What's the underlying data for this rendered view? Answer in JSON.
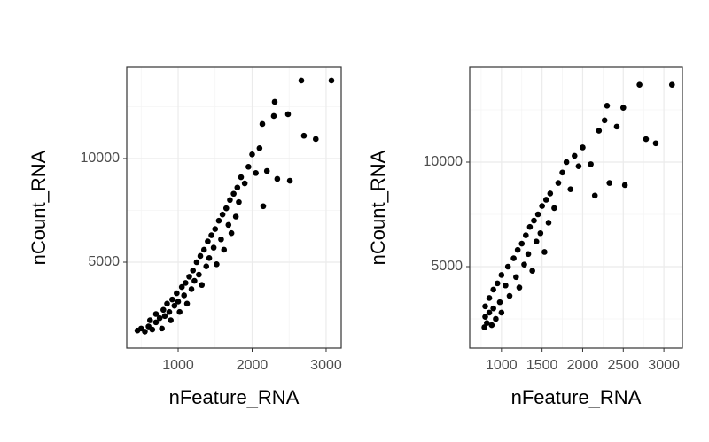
{
  "chart_data": [
    {
      "type": "scatter",
      "x_label": "nFeature_RNA",
      "y_label": "nCount_RNA",
      "color": "#000000",
      "grid": true,
      "xlim": [
        305,
        3204
      ],
      "ylim": [
        855,
        14400
      ],
      "xticks": [
        1000,
        2000,
        3000
      ],
      "yticks": [
        5000,
        10000
      ],
      "xminor": [
        500,
        1500,
        2500
      ],
      "yminor": [
        2500,
        7500,
        12500
      ],
      "x": [
        450,
        500,
        550,
        600,
        620,
        650,
        700,
        700,
        750,
        780,
        800,
        820,
        850,
        880,
        900,
        920,
        950,
        980,
        1000,
        1020,
        1050,
        1080,
        1100,
        1120,
        1150,
        1180,
        1200,
        1220,
        1250,
        1280,
        1300,
        1320,
        1350,
        1380,
        1400,
        1420,
        1450,
        1480,
        1500,
        1520,
        1550,
        1580,
        1600,
        1620,
        1650,
        1680,
        1700,
        1720,
        1750,
        1780,
        1800,
        1820,
        1850,
        1900,
        1950,
        2000,
        2050,
        2100,
        2150,
        2200,
        2700,
        2860,
        2510,
        2340,
        2665,
        3072,
        2305,
        2485,
        2293,
        2138
      ],
      "values": [
        1700,
        1800,
        1650,
        1900,
        2200,
        1750,
        2100,
        2500,
        2300,
        1800,
        2700,
        2400,
        3000,
        2600,
        2200,
        3200,
        2900,
        3500,
        3100,
        2600,
        3800,
        3400,
        4000,
        3000,
        4300,
        3700,
        4600,
        4100,
        5000,
        4400,
        5300,
        3900,
        5600,
        4800,
        6000,
        5200,
        6300,
        5700,
        6600,
        4900,
        7000,
        6100,
        7300,
        5600,
        7600,
        6800,
        8000,
        6400,
        8300,
        7200,
        8600,
        7900,
        9100,
        8800,
        9600,
        10200,
        9300,
        10500,
        7700,
        9400,
        11100,
        10940,
        8930,
        9017,
        13760,
        13760,
        12735,
        12137,
        12051,
        11667
      ]
    },
    {
      "type": "scatter",
      "x_label": "nFeature_RNA",
      "y_label": "nCount_RNA",
      "color": "#000000",
      "grid": true,
      "xlim": [
        609,
        3228
      ],
      "ylim": [
        1102,
        14534
      ],
      "xticks": [
        1000,
        1500,
        2000,
        2500,
        3000
      ],
      "yticks": [
        5000,
        10000
      ],
      "xminor": [
        750,
        1250,
        1750,
        2250,
        2750
      ],
      "yminor": [
        2500,
        7500,
        12500
      ],
      "x": [
        790,
        800,
        800,
        820,
        850,
        850,
        880,
        900,
        900,
        930,
        950,
        980,
        1000,
        1000,
        1050,
        1080,
        1100,
        1150,
        1180,
        1200,
        1220,
        1250,
        1280,
        1300,
        1330,
        1350,
        1380,
        1400,
        1430,
        1450,
        1480,
        1500,
        1530,
        1550,
        1580,
        1600,
        1650,
        1700,
        1750,
        1800,
        1850,
        1900,
        1950,
        2000,
        2100,
        2150,
        2200,
        2300,
        2500,
        2270,
        2420,
        2700,
        3100,
        2780,
        2900,
        2520,
        2330
      ],
      "values": [
        2100,
        2600,
        3100,
        2300,
        3500,
        2800,
        2200,
        3900,
        3000,
        2500,
        4200,
        3300,
        4600,
        2800,
        4100,
        5000,
        3600,
        5400,
        4500,
        5800,
        4000,
        6100,
        5100,
        6500,
        5600,
        6900,
        4800,
        7200,
        6200,
        7500,
        6600,
        7900,
        5700,
        8200,
        7100,
        8500,
        7800,
        9000,
        9500,
        10000,
        8700,
        10300,
        9800,
        10700,
        9900,
        8400,
        11500,
        12700,
        12600,
        12000,
        11700,
        13700,
        13700,
        11100,
        10900,
        8900,
        9000
      ]
    }
  ]
}
